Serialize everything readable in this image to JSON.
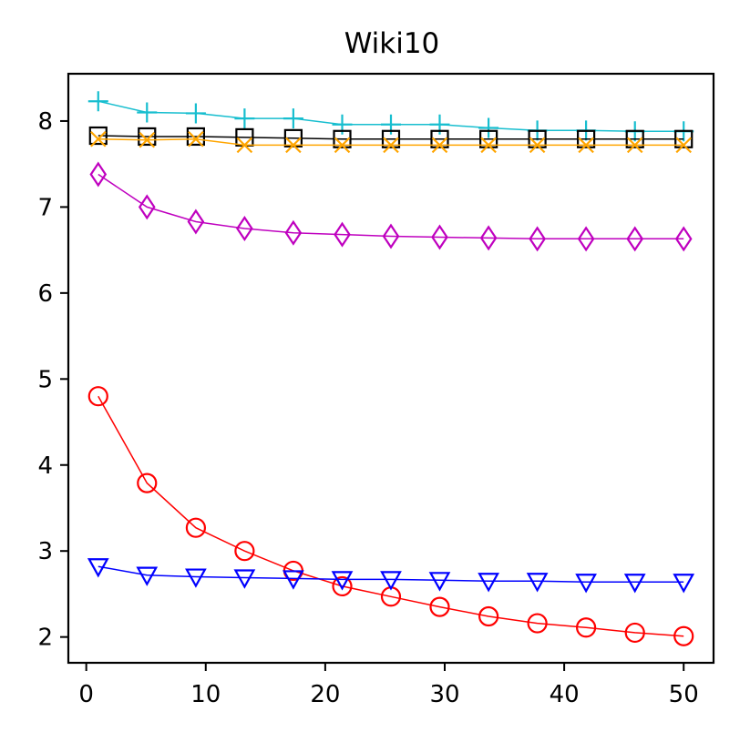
{
  "chart_data": {
    "type": "line",
    "title": "Wiki10",
    "xlabel": "",
    "ylabel": "",
    "xlim": [
      -1.5,
      52.5
    ],
    "ylim": [
      1.7,
      8.55
    ],
    "xticks": [
      0,
      10,
      20,
      30,
      40,
      50
    ],
    "yticks": [
      2,
      3,
      4,
      5,
      6,
      7,
      8
    ],
    "grid": false,
    "x": [
      1,
      5.08,
      9.17,
      13.25,
      17.33,
      21.42,
      25.5,
      29.58,
      33.67,
      37.75,
      41.83,
      45.92,
      50
    ],
    "series": [
      {
        "name": "cyan-plus",
        "color": "#17becf",
        "marker": "plus",
        "values": [
          8.23,
          8.1,
          8.09,
          8.03,
          8.03,
          7.96,
          7.96,
          7.96,
          7.92,
          7.89,
          7.89,
          7.88,
          7.88
        ]
      },
      {
        "name": "black-square",
        "color": "#000000",
        "marker": "square",
        "values": [
          7.83,
          7.82,
          7.82,
          7.81,
          7.8,
          7.79,
          7.79,
          7.79,
          7.79,
          7.79,
          7.79,
          7.79,
          7.79
        ]
      },
      {
        "name": "orange-x",
        "color": "#ffa500",
        "marker": "x",
        "values": [
          7.79,
          7.78,
          7.79,
          7.72,
          7.72,
          7.72,
          7.72,
          7.72,
          7.72,
          7.72,
          7.72,
          7.72,
          7.72
        ]
      },
      {
        "name": "magenta-diamond",
        "color": "#bf00bf",
        "marker": "diamond",
        "values": [
          7.38,
          7.0,
          6.83,
          6.75,
          6.7,
          6.68,
          6.66,
          6.65,
          6.64,
          6.63,
          6.63,
          6.63,
          6.63
        ]
      },
      {
        "name": "red-circle",
        "color": "#ff0000",
        "marker": "circle",
        "values": [
          4.8,
          3.79,
          3.27,
          3.0,
          2.77,
          2.59,
          2.47,
          2.35,
          2.24,
          2.16,
          2.11,
          2.05,
          2.01
        ]
      },
      {
        "name": "blue-triangle",
        "color": "#0000ff",
        "marker": "triangle-down",
        "values": [
          2.82,
          2.72,
          2.7,
          2.69,
          2.68,
          2.67,
          2.67,
          2.66,
          2.65,
          2.65,
          2.64,
          2.64,
          2.64
        ]
      }
    ]
  }
}
